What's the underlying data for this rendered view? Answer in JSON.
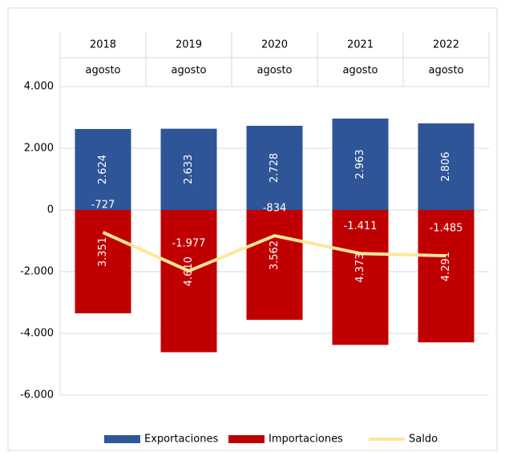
{
  "chart_data": {
    "type": "bar",
    "categories": [
      "2018",
      "2019",
      "2020",
      "2021",
      "2022"
    ],
    "subcategories": [
      "agosto",
      "agosto",
      "agosto",
      "agosto",
      "agosto"
    ],
    "series": [
      {
        "name": "Exportaciones",
        "color": "#2e5597",
        "values": [
          2624,
          2633,
          2728,
          2963,
          2806
        ],
        "value_labels": [
          "2.624",
          "2.633",
          "2.728",
          "2.963",
          "2.806"
        ]
      },
      {
        "name": "Importaciones",
        "color": "#c00000",
        "values": [
          -3351,
          -4610,
          -3562,
          -4373,
          -4291
        ],
        "value_labels": [
          "3.351",
          "4.610",
          "3.562",
          "4.373",
          "4.291"
        ]
      },
      {
        "name": "Saldo",
        "type": "line",
        "color": "#ffe699",
        "values": [
          -727,
          -1977,
          -834,
          -1411,
          -1485
        ],
        "value_labels": [
          "-727",
          "-1.977",
          "-834",
          "-1.411",
          "-1.485"
        ]
      }
    ],
    "ylim": [
      -6000,
      4000
    ],
    "yticks": [
      {
        "value": 4000,
        "label": "4.000"
      },
      {
        "value": 2000,
        "label": "2.000"
      },
      0,
      {
        "value": -2000,
        "label": "-2.000"
      },
      {
        "value": -4000,
        "label": "-4.000"
      },
      {
        "value": -6000,
        "label": "-6.000"
      }
    ],
    "grid": true,
    "legend": "bottom"
  }
}
